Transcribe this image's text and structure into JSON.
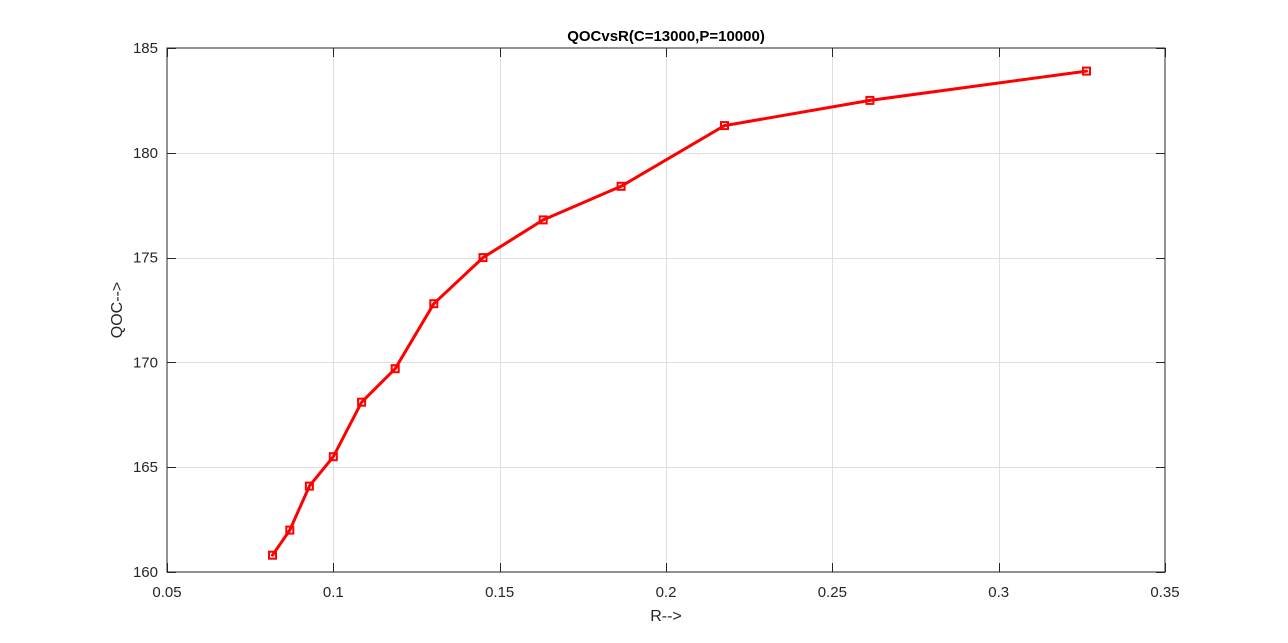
{
  "chart_data": {
    "type": "line",
    "title": "QOCvsR(C=13000,P=10000)",
    "xlabel": "R-->",
    "ylabel": "QOC-->",
    "xlim": [
      0.05,
      0.35
    ],
    "ylim": [
      160,
      185
    ],
    "xticks": [
      0.05,
      0.1,
      0.15,
      0.2,
      0.25,
      0.3,
      0.35
    ],
    "xtick_labels": [
      "0.05",
      "0.1",
      "0.15",
      "0.2",
      "0.25",
      "0.3",
      "0.35"
    ],
    "yticks": [
      160,
      165,
      170,
      175,
      180,
      185
    ],
    "ytick_labels": [
      "160",
      "165",
      "170",
      "175",
      "180",
      "185"
    ],
    "grid": true,
    "marker": "square",
    "series": [
      {
        "color": "#ff0000",
        "x": [
          0.0817,
          0.0869,
          0.0928,
          0.1,
          0.1085,
          0.1186,
          0.1302,
          0.145,
          0.1631,
          0.1865,
          0.2176,
          0.2613,
          0.3264
        ],
        "y": [
          160.8,
          162.0,
          164.1,
          165.5,
          168.1,
          169.7,
          172.8,
          175.0,
          176.8,
          178.4,
          181.3,
          182.5,
          183.9
        ]
      }
    ]
  }
}
